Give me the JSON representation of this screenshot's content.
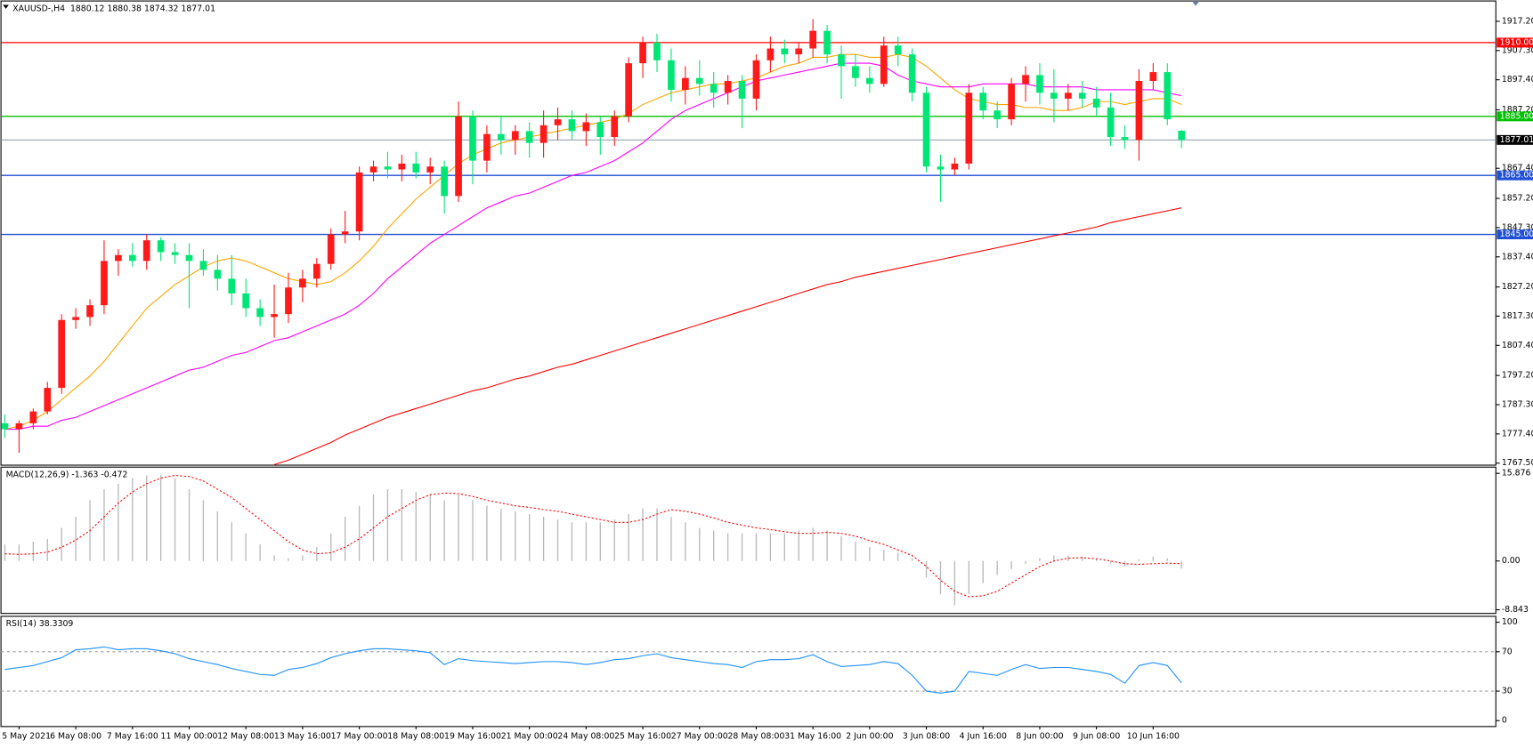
{
  "chart_data": [
    {
      "type": "candlestick",
      "title": "XAUUSD-,H4  1880.12 1880.38 1874.32 1877.01",
      "categories": [
        null,
        "5 May 2021",
        null,
        null,
        null,
        "6 May 08:00",
        null,
        null,
        null,
        "7 May 16:00",
        null,
        null,
        null,
        "11 May 00:00",
        null,
        null,
        null,
        "12 May 08:00",
        null,
        null,
        null,
        "13 May 16:00",
        null,
        null,
        null,
        "17 May 00:00",
        null,
        null,
        null,
        "18 May 08:00",
        null,
        null,
        null,
        "19 May 16:00",
        null,
        null,
        null,
        "21 May 00:00",
        null,
        null,
        null,
        "24 May 08:00",
        null,
        null,
        null,
        "25 May 16:00",
        null,
        null,
        null,
        "27 May 00:00",
        null,
        null,
        null,
        "28 May 08:00",
        null,
        null,
        null,
        "31 May 16:00",
        null,
        null,
        null,
        "2 Jun 00:00",
        null,
        null,
        null,
        "3 Jun 08:00",
        null,
        null,
        null,
        "4 Jun 16:00",
        null,
        null,
        null,
        "8 Jun 00:00",
        null,
        null,
        null,
        "9 Jun 08:00",
        null,
        null,
        null,
        "10 Jun 16:00",
        null,
        null
      ],
      "open": [
        1781,
        1779,
        1781,
        1785,
        1793,
        1816,
        1817,
        1821,
        1836,
        1838,
        1836,
        1843,
        1839,
        1838,
        1836,
        1833,
        1830,
        1825,
        1820,
        1817,
        1818,
        1827,
        1830,
        1835,
        1845,
        1846,
        1866,
        1868,
        1867,
        1869,
        1866,
        1868,
        1858,
        1885,
        1870,
        1879,
        1877,
        1880,
        1876,
        1882,
        1884,
        1880,
        1883,
        1878,
        1885,
        1903,
        1910,
        1904,
        1894,
        1898,
        1896,
        1893,
        1897,
        1891,
        1904,
        1908,
        1906,
        1908,
        1914,
        1906,
        1902,
        1898,
        1896,
        1909,
        1906,
        1893,
        1868,
        1867,
        1869,
        1893,
        1887,
        1884,
        1896,
        1899,
        1893,
        1891,
        1893,
        1891,
        1888,
        1878,
        1877,
        1897,
        1900,
        1880.12
      ],
      "high": [
        1784,
        1782,
        1786,
        1795,
        1818,
        1820,
        1823,
        1843,
        1840,
        1842,
        1845,
        1844,
        1842,
        1842,
        1840,
        1838,
        1838,
        1830,
        1823,
        1828,
        1832,
        1833,
        1837,
        1847,
        1853,
        1868,
        1870,
        1873,
        1872,
        1873,
        1871,
        1870,
        1890,
        1887,
        1882,
        1885,
        1882,
        1883,
        1887,
        1888,
        1887,
        1886,
        1885,
        1887,
        1905,
        1912,
        1913,
        1908,
        1902,
        1904,
        1900,
        1899,
        1899,
        1906,
        1912,
        1911,
        1910,
        1918,
        1916,
        1909,
        1906,
        1902,
        1912,
        1912,
        1908,
        1895,
        1872,
        1871,
        1896,
        1895,
        1890,
        1898,
        1902,
        1903,
        1901,
        1896,
        1897,
        1895,
        1893,
        1882,
        1901,
        1903,
        1903,
        1880.38
      ],
      "low": [
        1776,
        1771,
        1779,
        1784,
        1791,
        1813,
        1814,
        1818,
        1831,
        1834,
        1833,
        1836,
        1835,
        1820,
        1831,
        1826,
        1821,
        1817,
        1814,
        1810,
        1815,
        1822,
        1827,
        1833,
        1842,
        1843,
        1863,
        1864,
        1863,
        1864,
        1862,
        1852,
        1856,
        1862,
        1866,
        1872,
        1872,
        1871,
        1871,
        1877,
        1877,
        1875,
        1872,
        1875,
        1883,
        1898,
        1900,
        1890,
        1889,
        1892,
        1888,
        1889,
        1881,
        1887,
        1900,
        1903,
        1903,
        1905,
        1903,
        1891,
        1895,
        1893,
        1895,
        1902,
        1890,
        1866,
        1856,
        1865,
        1867,
        1884,
        1881,
        1882,
        1890,
        1889,
        1883,
        1887,
        1888,
        1885,
        1875,
        1874,
        1870,
        1894,
        1882,
        1874.32
      ],
      "close": [
        1779,
        1781,
        1785,
        1793,
        1816,
        1817,
        1821,
        1836,
        1838,
        1836,
        1843,
        1839,
        1838,
        1836,
        1833,
        1830,
        1825,
        1820,
        1817,
        1818,
        1827,
        1830,
        1835,
        1845,
        1846,
        1866,
        1868,
        1867,
        1869,
        1866,
        1868,
        1858,
        1885,
        1870,
        1879,
        1877,
        1880,
        1876,
        1882,
        1884,
        1880,
        1883,
        1878,
        1885,
        1903,
        1910,
        1904,
        1894,
        1898,
        1896,
        1893,
        1897,
        1891,
        1904,
        1908,
        1906,
        1908,
        1914,
        1906,
        1902,
        1898,
        1896,
        1909,
        1906,
        1893,
        1868,
        1867,
        1869,
        1893,
        1887,
        1884,
        1896,
        1899,
        1893,
        1891,
        1893,
        1891,
        1888,
        1878,
        1877,
        1897,
        1900,
        1884,
        1877.01
      ],
      "up_color": "#ff1a1a",
      "down_color": "#00e676",
      "moving_averages": [
        {
          "color": "#ffa500",
          "values": [
            1779,
            1780,
            1782,
            1785,
            1789,
            1793,
            1797,
            1802,
            1808,
            1814,
            1820,
            1824,
            1828,
            1831,
            1834,
            1836,
            1837,
            1836,
            1834,
            1832,
            1830,
            1829,
            1828,
            1829,
            1832,
            1836,
            1841,
            1847,
            1852,
            1857,
            1861,
            1865,
            1869,
            1872,
            1874,
            1876,
            1877,
            1878,
            1879,
            1880,
            1881,
            1882,
            1883,
            1884,
            1886,
            1889,
            1891,
            1893,
            1894,
            1895,
            1896,
            1896,
            1897,
            1898,
            1900,
            1902,
            1903,
            1905,
            1905,
            1906,
            1906,
            1905,
            1905,
            1906,
            1905,
            1902,
            1898,
            1894,
            1891,
            1890,
            1889,
            1889,
            1888,
            1888,
            1887,
            1887,
            1888,
            1890,
            1890,
            1889,
            1890,
            1891,
            1891,
            1889
          ]
        },
        {
          "color": "#ff00ff",
          "values": [
            1779,
            1779,
            1780,
            1780,
            1782,
            1783,
            1785,
            1787,
            1789,
            1791,
            1793,
            1795,
            1797,
            1799,
            1800,
            1802,
            1804,
            1805,
            1807,
            1809,
            1810,
            1812,
            1814,
            1816,
            1818,
            1821,
            1825,
            1830,
            1834,
            1838,
            1842,
            1845,
            1848,
            1851,
            1854,
            1856,
            1858,
            1859,
            1861,
            1863,
            1865,
            1866,
            1868,
            1870,
            1873,
            1876,
            1880,
            1884,
            1887,
            1889,
            1891,
            1893,
            1895,
            1897,
            1898,
            1899,
            1900,
            1901,
            1902,
            1903,
            1903,
            1903,
            1902,
            1899,
            1897,
            1896,
            1895,
            1895,
            1895,
            1896,
            1896,
            1896,
            1896,
            1895,
            1895,
            1895,
            1895,
            1894,
            1894,
            1894,
            1894,
            1894,
            1893,
            1892
          ]
        },
        {
          "color": "#ff0000",
          "values": [
            null,
            null,
            null,
            null,
            null,
            null,
            null,
            null,
            null,
            null,
            null,
            null,
            null,
            null,
            null,
            null,
            null,
            null,
            null,
            1767,
            1768.5,
            1770.5,
            1772.5,
            1774.5,
            1777,
            1779,
            1781,
            1783,
            1784.5,
            1786,
            1787.5,
            1789,
            1790.5,
            1792,
            1793,
            1794.5,
            1796,
            1797,
            1798.5,
            1800,
            1801,
            1802.5,
            1804,
            1805.5,
            1807,
            1808.5,
            1810,
            1811.5,
            1813,
            1814.5,
            1816,
            1817.5,
            1819,
            1820.5,
            1822,
            1823.5,
            1825,
            1826.5,
            1828,
            1829,
            1830.5,
            1831.5,
            1832.5,
            1833.5,
            1834.5,
            1835.5,
            1836.5,
            1837.5,
            1838.5,
            1839.5,
            1840.5,
            1841.5,
            1842.5,
            1843.5,
            1844.5,
            1845.5,
            1846.5,
            1847.5,
            1849,
            1850,
            1851,
            1852,
            1853,
            1854
          ]
        }
      ],
      "hlines": [
        {
          "value": 1910,
          "label": "1910.00",
          "color": "#ff0000"
        },
        {
          "value": 1885,
          "label": "1885.00",
          "color": "#00c000"
        },
        {
          "value": 1865,
          "label": "1865.00",
          "color": "#1f4fd6"
        },
        {
          "value": 1845,
          "label": "1845.00",
          "color": "#1f4fd6"
        }
      ],
      "last_price": {
        "value": 1877.01,
        "label": "1877.01"
      },
      "ylim": [
        1766.8,
        1924.1
      ],
      "yticks": [
        {
          "value": 1917.2,
          "label": "1917.20"
        },
        {
          "value": 1907.3,
          "label": "1907.30"
        },
        {
          "value": 1897.4,
          "label": "1897.40"
        },
        {
          "value": 1887.2,
          "label": "1887.20"
        },
        {
          "value": 1867.4,
          "label": "1867.40"
        },
        {
          "value": 1857.2,
          "label": "1857.20"
        },
        {
          "value": 1847.3,
          "label": "1847.30"
        },
        {
          "value": 1837.4,
          "label": "1837.40"
        },
        {
          "value": 1827.2,
          "label": "1827.20"
        },
        {
          "value": 1817.3,
          "label": "1817.30"
        },
        {
          "value": 1807.4,
          "label": "1807.40"
        },
        {
          "value": 1797.2,
          "label": "1797.20"
        },
        {
          "value": 1787.3,
          "label": "1787.30"
        },
        {
          "value": 1777.4,
          "label": "1777.40"
        },
        {
          "value": 1767.5,
          "label": "1767.50"
        }
      ]
    },
    {
      "type": "macd",
      "title": "MACD(12,26,9) -1.363 -0.472",
      "ylim": [
        -9.5,
        17
      ],
      "yticks": [
        15.876,
        {
          "value": 0,
          "label": "0.00"
        },
        -8.843
      ],
      "histogram": {
        "color": "#b8b8b8",
        "values": [
          3,
          3,
          3.5,
          4,
          6,
          8,
          11,
          13,
          14,
          15,
          15.5,
          15.5,
          15,
          13,
          11,
          9,
          7,
          5,
          3,
          1,
          0.5,
          1,
          2.5,
          5,
          8,
          10,
          12,
          13,
          13,
          12.5,
          12,
          11,
          12,
          11,
          10,
          9.5,
          9,
          8.5,
          8,
          7.5,
          7,
          7,
          7,
          7.5,
          8.5,
          9.5,
          9.5,
          8,
          7,
          6,
          5.5,
          5,
          5,
          5,
          5,
          5,
          5.5,
          6,
          5.5,
          4.5,
          3.5,
          2.5,
          2,
          1.5,
          0.5,
          -3,
          -6,
          -8,
          -6,
          -4,
          -2.5,
          -1.5,
          -0.5,
          0.5,
          1,
          1,
          0.8,
          0.3,
          -0.5,
          -1,
          0.3,
          0.8,
          0.5,
          -1.363
        ]
      },
      "signal": {
        "color": "#ff0000",
        "values": [
          1.3,
          1.2,
          1.3,
          1.6,
          2.5,
          3.8,
          5.5,
          8,
          10.5,
          12.5,
          14,
          15,
          15.5,
          15.3,
          14.5,
          13,
          11.5,
          9.5,
          7.5,
          5.5,
          3.5,
          2,
          1.3,
          1.5,
          2.5,
          4,
          6,
          8,
          9.5,
          11,
          12,
          12.3,
          12.2,
          11.7,
          11,
          10.5,
          10,
          9.7,
          9.3,
          9,
          8.5,
          8,
          7.5,
          7,
          7,
          7.5,
          8.5,
          9.3,
          9,
          8.5,
          7.8,
          7,
          6.5,
          6,
          5.7,
          5.3,
          5,
          5,
          5.2,
          5,
          4.5,
          3.7,
          3,
          2,
          1,
          -1,
          -3.5,
          -5.5,
          -6.5,
          -6.3,
          -5.5,
          -4,
          -2.5,
          -1,
          0,
          0.5,
          0.6,
          0.4,
          0,
          -0.5,
          -0.6,
          -0.5,
          -0.4,
          -0.472
        ]
      }
    },
    {
      "type": "line",
      "title": "RSI(14) 38.3309",
      "ylim": [
        -6,
        106
      ],
      "yticks": [
        0,
        30,
        70,
        100
      ],
      "dashed_levels": [
        30,
        70
      ],
      "series": [
        {
          "color": "#1e90ff",
          "values": [
            52,
            54,
            56,
            60,
            64,
            72,
            73,
            75,
            72,
            73,
            73,
            71,
            68,
            63,
            60,
            57,
            53,
            50,
            47,
            46,
            52,
            54,
            58,
            64,
            68,
            71,
            73,
            73,
            72,
            71,
            69,
            57,
            63,
            61,
            60,
            59,
            58,
            59,
            60,
            60,
            59,
            57,
            59,
            62,
            63,
            66,
            68,
            64,
            62,
            60,
            58,
            57,
            54,
            60,
            62,
            62,
            63,
            67,
            60,
            55,
            56,
            57,
            60,
            58,
            46,
            30,
            28,
            30,
            50,
            48,
            46,
            52,
            57,
            53,
            54,
            54,
            52,
            50,
            47,
            38,
            56,
            59,
            56,
            38.3309
          ]
        }
      ]
    }
  ]
}
